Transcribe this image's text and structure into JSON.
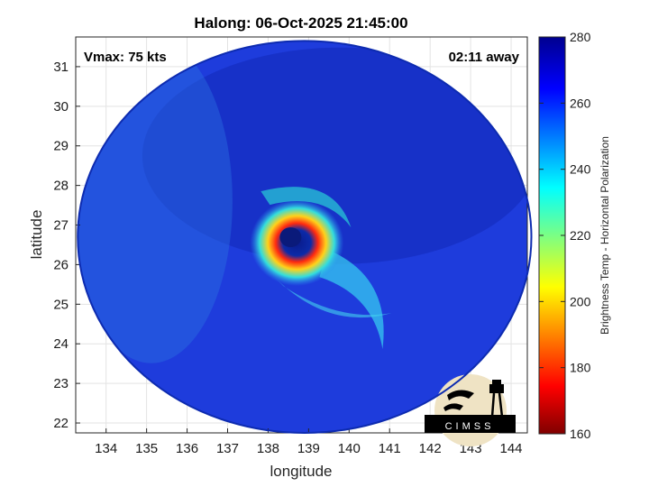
{
  "chart_data": {
    "type": "heatmap",
    "title": "Halong: 06-Oct-2025 21:45:00",
    "xlabel": "longitude",
    "ylabel": "latitude",
    "xlim": [
      133.25,
      144.4
    ],
    "ylim": [
      21.75,
      31.75
    ],
    "xticks": [
      134,
      135,
      136,
      137,
      138,
      139,
      140,
      141,
      142,
      143,
      144
    ],
    "yticks": [
      22,
      23,
      24,
      25,
      26,
      27,
      28,
      29,
      30,
      31
    ],
    "grid": true,
    "colorbar": {
      "label": "Brightness Temp - Horizontal Polarization",
      "range": [
        160,
        280
      ],
      "ticks": [
        160,
        180,
        200,
        220,
        240,
        260,
        280
      ],
      "colormap": "jet"
    },
    "swath": {
      "center": [
        138.9,
        26.7
      ],
      "radius_lon": 5.6,
      "radius_lat": 4.95
    },
    "storm_center": [
      138.6,
      26.6
    ],
    "annotations": {
      "vmax": "Vmax: 75 kts",
      "time_away": "02:11 away"
    },
    "logo_text": "CIMSS"
  },
  "colors": {
    "background_cold": "#1e3cdc",
    "eyewall_warm": "#e6201a"
  }
}
